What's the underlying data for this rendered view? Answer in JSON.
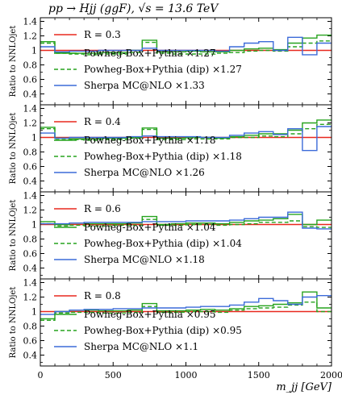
{
  "figure": {
    "title": "pp → Hjj (ggF), √s = 13.6 TeV",
    "xlabel": "m_jj [GeV]",
    "ylabel": "Ratio to NNLOjet"
  },
  "colors": {
    "red": "#e8281e",
    "green": "#27a31e",
    "blue": "#3c6bd9",
    "frame": "#000000"
  },
  "chart_data": [
    {
      "type": "line",
      "panel": "R = 0.3",
      "legend": [
        "R = 0.3",
        "Powheg-Box+Pythia ×1.27",
        "Powheg-Box+Pythia (dip) ×1.27",
        "Sherpa MC@NLO ×1.33"
      ],
      "xlim": [
        0,
        2000
      ],
      "ylim": [
        0.25,
        1.45
      ],
      "bin_edges": [
        0,
        100,
        200,
        300,
        400,
        500,
        600,
        700,
        800,
        900,
        1000,
        1100,
        1200,
        1300,
        1400,
        1500,
        1600,
        1700,
        1800,
        1900,
        2000
      ],
      "series": [
        {
          "name": "R = 0.3",
          "style": "red-solid",
          "values": [
            1.0,
            1.0,
            1.0,
            1.0,
            1.0,
            1.0,
            1.0,
            1.0,
            1.0,
            1.0,
            1.0,
            1.0,
            1.0,
            1.0,
            1.0,
            1.0,
            1.0,
            1.0,
            1.0,
            1.0
          ]
        },
        {
          "name": "Powheg-Box+Pythia ×1.27",
          "style": "green-solid",
          "values": [
            1.12,
            0.97,
            0.96,
            0.96,
            0.97,
            0.97,
            1.0,
            1.14,
            0.98,
            0.98,
            0.99,
            0.98,
            0.98,
            1.0,
            1.02,
            1.03,
            1.01,
            1.1,
            1.17,
            1.21
          ]
        },
        {
          "name": "Powheg-Box+Pythia (dip) ×1.27",
          "style": "green-dashed",
          "values": [
            1.1,
            0.96,
            0.95,
            0.94,
            0.95,
            0.95,
            0.97,
            1.11,
            0.96,
            0.95,
            0.95,
            0.95,
            0.96,
            0.97,
            0.99,
            1.0,
            0.99,
            1.05,
            1.1,
            1.13
          ]
        },
        {
          "name": "Sherpa MC@NLO ×1.33",
          "style": "blue-solid",
          "values": [
            1.05,
            0.98,
            0.99,
            0.99,
            1.0,
            1.0,
            1.0,
            1.03,
            1.0,
            1.0,
            1.0,
            1.0,
            0.99,
            1.05,
            1.1,
            1.12,
            1.0,
            1.18,
            0.94,
            1.1
          ]
        }
      ]
    },
    {
      "type": "line",
      "panel": "R = 0.4",
      "legend": [
        "R = 0.4",
        "Powheg-Box+Pythia ×1.18",
        "Powheg-Box+Pythia (dip) ×1.18",
        "Sherpa MC@NLO ×1.26"
      ],
      "xlim": [
        0,
        2000
      ],
      "ylim": [
        0.25,
        1.45
      ],
      "bin_edges": [
        0,
        100,
        200,
        300,
        400,
        500,
        600,
        700,
        800,
        900,
        1000,
        1100,
        1200,
        1300,
        1400,
        1500,
        1600,
        1700,
        1800,
        1900,
        2000
      ],
      "series": [
        {
          "name": "R = 0.4",
          "style": "red-solid",
          "values": [
            1.0,
            1.0,
            1.0,
            1.0,
            1.0,
            1.0,
            1.0,
            1.0,
            1.0,
            1.0,
            1.0,
            1.0,
            1.0,
            1.0,
            1.0,
            1.0,
            1.0,
            1.0,
            1.0,
            1.0
          ]
        },
        {
          "name": "Powheg-Box+Pythia ×1.18",
          "style": "green-solid",
          "values": [
            1.14,
            0.99,
            0.98,
            0.98,
            0.99,
            0.99,
            1.0,
            1.13,
            0.99,
            0.99,
            1.0,
            1.0,
            0.99,
            1.01,
            1.03,
            1.05,
            1.05,
            1.1,
            1.2,
            1.24
          ]
        },
        {
          "name": "Powheg-Box+Pythia (dip) ×1.18",
          "style": "green-dashed",
          "values": [
            1.12,
            0.97,
            0.97,
            0.96,
            0.97,
            0.97,
            0.99,
            1.11,
            0.97,
            0.97,
            0.98,
            0.98,
            0.98,
            1.0,
            1.0,
            1.02,
            1.01,
            1.05,
            1.12,
            1.18
          ]
        },
        {
          "name": "Sherpa MC@NLO ×1.26",
          "style": "blue-solid",
          "values": [
            1.06,
            0.99,
            1.0,
            1.0,
            1.0,
            1.0,
            1.01,
            1.02,
            1.01,
            1.01,
            1.01,
            1.0,
            1.0,
            1.03,
            1.06,
            1.08,
            1.04,
            1.12,
            0.82,
            1.15
          ]
        }
      ]
    },
    {
      "type": "line",
      "panel": "R = 0.6",
      "legend": [
        "R = 0.6",
        "Powheg-Box+Pythia ×1.04",
        "Powheg-Box+Pythia (dip) ×1.04",
        "Sherpa MC@NLO ×1.18"
      ],
      "xlim": [
        0,
        2000
      ],
      "ylim": [
        0.25,
        1.45
      ],
      "bin_edges": [
        0,
        100,
        200,
        300,
        400,
        500,
        600,
        700,
        800,
        900,
        1000,
        1100,
        1200,
        1300,
        1400,
        1500,
        1600,
        1700,
        1800,
        1900,
        2000
      ],
      "series": [
        {
          "name": "R = 0.6",
          "style": "red-solid",
          "values": [
            1.0,
            1.0,
            1.0,
            1.0,
            1.0,
            1.0,
            1.0,
            1.0,
            1.0,
            1.0,
            1.0,
            1.0,
            1.0,
            1.0,
            1.0,
            1.0,
            1.0,
            1.0,
            1.0,
            1.0
          ]
        },
        {
          "name": "Powheg-Box+Pythia ×1.04",
          "style": "green-solid",
          "values": [
            1.04,
            1.0,
            1.02,
            1.01,
            1.01,
            1.01,
            1.02,
            1.11,
            1.0,
            1.01,
            1.02,
            1.02,
            1.01,
            1.03,
            1.05,
            1.06,
            1.08,
            1.14,
            1.0,
            1.06
          ]
        },
        {
          "name": "Powheg-Box+Pythia (dip) ×1.04",
          "style": "green-dashed",
          "values": [
            1.01,
            0.98,
            0.99,
            0.98,
            0.98,
            0.99,
            0.99,
            1.07,
            0.99,
            0.99,
            1.0,
            1.0,
            0.99,
            1.0,
            1.01,
            1.03,
            1.03,
            1.05,
            0.97,
            0.96
          ]
        },
        {
          "name": "Sherpa MC@NLO ×1.18",
          "style": "blue-solid",
          "values": [
            1.01,
            1.01,
            1.02,
            1.03,
            1.03,
            1.03,
            1.03,
            1.04,
            1.04,
            1.04,
            1.05,
            1.05,
            1.05,
            1.06,
            1.08,
            1.1,
            1.1,
            1.17,
            0.95,
            0.94
          ]
        }
      ]
    },
    {
      "type": "line",
      "panel": "R = 0.8",
      "legend": [
        "R = 0.8",
        "Powheg-Box+Pythia ×0.95",
        "Powheg-Box+Pythia (dip) ×0.95",
        "Sherpa MC@NLO ×1.1"
      ],
      "xlim": [
        0,
        2000
      ],
      "ylim": [
        0.25,
        1.45
      ],
      "bin_edges": [
        0,
        100,
        200,
        300,
        400,
        500,
        600,
        700,
        800,
        900,
        1000,
        1100,
        1200,
        1300,
        1400,
        1500,
        1600,
        1700,
        1800,
        1900,
        2000
      ],
      "series": [
        {
          "name": "R = 0.8",
          "style": "red-solid",
          "values": [
            1.0,
            1.0,
            1.0,
            1.0,
            1.0,
            1.0,
            1.0,
            1.0,
            1.0,
            1.0,
            1.0,
            1.0,
            1.0,
            1.0,
            1.0,
            1.0,
            1.0,
            1.0,
            1.0,
            1.0
          ]
        },
        {
          "name": "Powheg-Box+Pythia ×0.95",
          "style": "green-solid",
          "values": [
            0.9,
            1.0,
            1.02,
            1.02,
            1.01,
            1.01,
            1.02,
            1.11,
            1.01,
            1.01,
            1.02,
            1.03,
            1.02,
            1.04,
            1.07,
            1.08,
            1.1,
            1.12,
            1.27,
            1.05
          ]
        },
        {
          "name": "Powheg-Box+Pythia (dip) ×0.95",
          "style": "green-dashed",
          "values": [
            0.88,
            0.98,
            0.99,
            0.99,
            0.98,
            0.98,
            0.99,
            1.07,
            0.99,
            0.99,
            1.0,
            1.0,
            0.99,
            1.02,
            1.04,
            1.05,
            1.06,
            1.09,
            1.13,
            1.0
          ]
        },
        {
          "name": "Sherpa MC@NLO ×1.1",
          "style": "blue-solid",
          "values": [
            0.96,
            1.0,
            1.02,
            1.03,
            1.03,
            1.04,
            1.04,
            1.05,
            1.05,
            1.05,
            1.06,
            1.07,
            1.07,
            1.09,
            1.13,
            1.18,
            1.15,
            1.1,
            1.2,
            1.22
          ]
        }
      ]
    }
  ]
}
